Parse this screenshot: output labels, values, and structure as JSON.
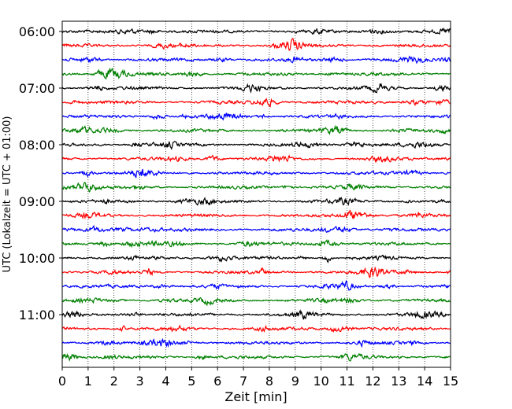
{
  "chart_data": {
    "type": "line",
    "title": "",
    "xlabel": "Zeit  [min]",
    "ylabel": "UTC (Lokalzeit = UTC + 01:00)",
    "xlim": [
      0,
      15
    ],
    "x_ticks": [
      0,
      1,
      2,
      3,
      4,
      5,
      6,
      7,
      8,
      9,
      10,
      11,
      12,
      13,
      14,
      15
    ],
    "y_tick_labels": [
      "06:00",
      "07:00",
      "08:00",
      "09:00",
      "10:00",
      "11:00"
    ],
    "grid": "vertical dotted at each minute",
    "trace_minutes": 15,
    "trace_colors_cycle": [
      "#000000",
      "#ff0000",
      "#0000ff",
      "#008000"
    ],
    "traces": [
      {
        "start": "06:00",
        "color": "#000000"
      },
      {
        "start": "06:15",
        "color": "#ff0000"
      },
      {
        "start": "06:30",
        "color": "#0000ff"
      },
      {
        "start": "06:45",
        "color": "#008000"
      },
      {
        "start": "07:00",
        "color": "#000000"
      },
      {
        "start": "07:15",
        "color": "#ff0000"
      },
      {
        "start": "07:30",
        "color": "#0000ff"
      },
      {
        "start": "07:45",
        "color": "#008000"
      },
      {
        "start": "08:00",
        "color": "#000000"
      },
      {
        "start": "08:15",
        "color": "#ff0000"
      },
      {
        "start": "08:30",
        "color": "#0000ff"
      },
      {
        "start": "08:45",
        "color": "#008000"
      },
      {
        "start": "09:00",
        "color": "#000000"
      },
      {
        "start": "09:15",
        "color": "#ff0000"
      },
      {
        "start": "09:30",
        "color": "#0000ff"
      },
      {
        "start": "09:45",
        "color": "#008000"
      },
      {
        "start": "10:00",
        "color": "#000000"
      },
      {
        "start": "10:15",
        "color": "#ff0000"
      },
      {
        "start": "10:30",
        "color": "#0000ff"
      },
      {
        "start": "10:45",
        "color": "#008000"
      },
      {
        "start": "11:00",
        "color": "#000000"
      },
      {
        "start": "11:15",
        "color": "#ff0000"
      },
      {
        "start": "11:30",
        "color": "#0000ff"
      },
      {
        "start": "11:45",
        "color": "#008000"
      }
    ]
  }
}
